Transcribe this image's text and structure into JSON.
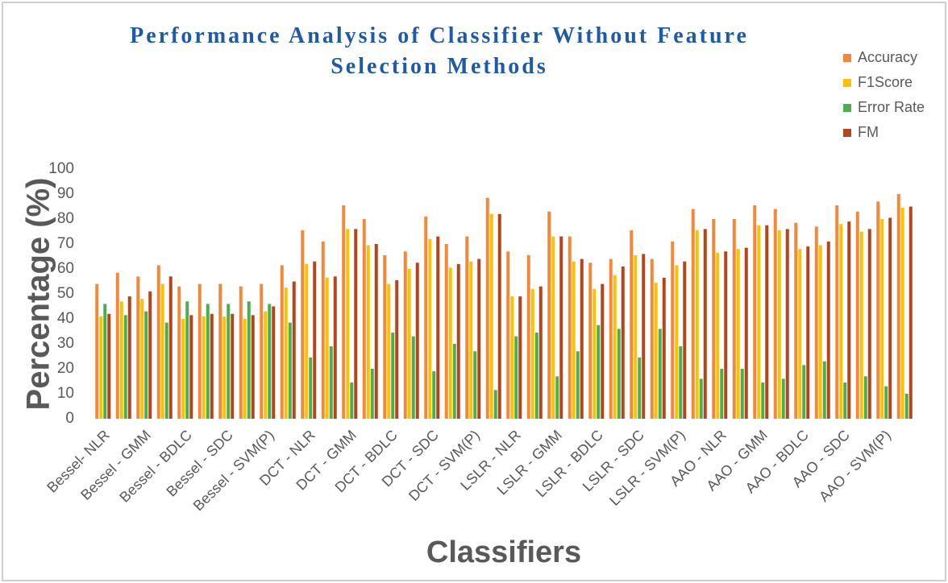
{
  "chart_data": {
    "type": "bar",
    "title": "Performance Analysis of Classifier Without Feature Selection Methods",
    "x_label": "Classifiers",
    "y_label": "Percentage (%)",
    "categories": [
      "Bessel- NLR",
      null,
      "Bessel - GMM",
      null,
      "Bessel - BDLC",
      null,
      "Bessel - SDC",
      null,
      "Bessel - SVM(P)",
      null,
      "DCT - NLR",
      null,
      "DCT - GMM",
      null,
      "DCT - BDLC",
      null,
      "DCT - SDC",
      null,
      "DCT - SVM(P)",
      null,
      "LSLR - NLR",
      null,
      "LSLR - GMM",
      null,
      "LSLR - BDLC",
      null,
      "LSLR - SDC",
      null,
      "LSLR - SVM(P)",
      null,
      "AAO - NLR",
      null,
      "AAO - GMM",
      null,
      "AAO - BDLC",
      null,
      "AAO - SDC",
      null,
      "AAO - SVM(P)",
      null
    ],
    "series": [
      {
        "name": "Accuracy",
        "color": "#f4883a",
        "values": [
          54,
          58.5,
          57,
          61.5,
          53,
          54,
          54,
          53,
          54,
          61.5,
          75.5,
          71,
          85.5,
          80,
          65.5,
          67,
          81,
          70,
          73,
          88.5,
          67,
          65.5,
          83,
          73,
          62.5,
          64,
          75.5,
          64,
          71,
          84,
          80,
          80,
          85.5,
          84,
          78.5,
          77,
          85.5,
          83,
          87,
          90
        ]
      },
      {
        "name": "F1Score",
        "color": "#ffc000",
        "values": [
          41,
          47,
          48,
          54,
          40,
          41,
          41,
          40,
          43,
          52.5,
          62,
          56.5,
          76,
          69.5,
          54,
          60,
          72,
          60.5,
          63,
          82,
          49,
          52,
          73,
          63,
          52,
          57.5,
          65.5,
          54.5,
          61.5,
          75.5,
          66.5,
          68,
          77.5,
          75.5,
          68,
          69.5,
          78,
          75,
          80,
          84.5
        ]
      },
      {
        "name": "Error Rate",
        "color": "#4cae4c",
        "values": [
          46,
          41.5,
          43,
          38.5,
          47,
          46,
          46,
          47,
          46,
          38.5,
          24.5,
          29,
          14.5,
          20,
          34.5,
          33,
          19,
          30,
          27,
          11.5,
          33,
          34.5,
          17,
          27,
          37.5,
          36,
          24.5,
          36,
          29,
          16,
          20,
          20,
          14.5,
          16,
          21.5,
          23,
          14.5,
          17,
          13,
          10
        ]
      },
      {
        "name": "FM",
        "color": "#b5451b",
        "values": [
          42,
          49,
          51,
          57,
          41.5,
          42,
          42,
          41.5,
          45,
          55,
          63,
          57,
          76,
          70,
          55.5,
          62.5,
          73,
          62,
          64,
          82,
          49,
          53,
          73,
          64,
          54,
          61,
          66,
          56.5,
          63,
          76,
          67,
          68.5,
          77.5,
          76,
          69,
          71,
          79,
          76,
          80.5,
          85
        ]
      }
    ],
    "ylim": [
      0,
      100
    ],
    "yticks": [
      0,
      10,
      20,
      30,
      40,
      50,
      60,
      70,
      80,
      90,
      100
    ],
    "grid": false,
    "legend": "upper right"
  }
}
